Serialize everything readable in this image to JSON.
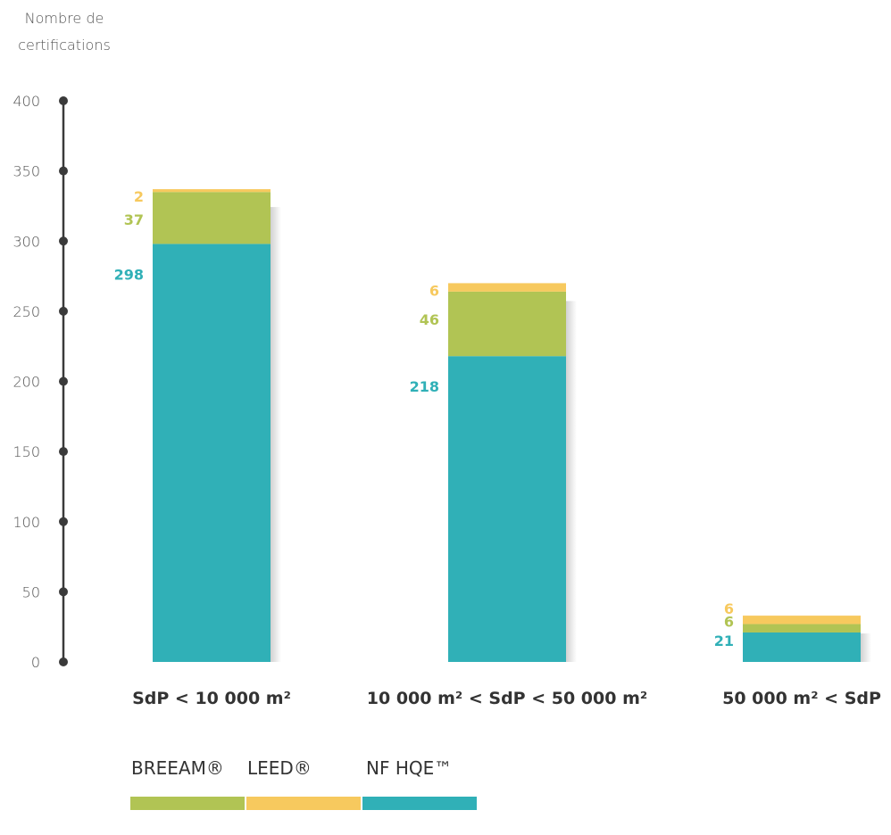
{
  "chart_data": {
    "type": "bar",
    "stacked": true,
    "ylabel_lines": [
      "Nombre de",
      "certifications"
    ],
    "ylim": [
      0,
      400
    ],
    "yticks": [
      0,
      50,
      100,
      150,
      200,
      250,
      300,
      350,
      400
    ],
    "categories": [
      "SdP < 10 000 m²",
      "10 000 m² < SdP < 50 000 m²",
      "50 000 m² < SdP"
    ],
    "series": [
      {
        "name": "NF HQE™",
        "color": "#30b0b7",
        "values": [
          298,
          218,
          21
        ]
      },
      {
        "name": "BREEAM®",
        "color": "#b1c454",
        "values": [
          37,
          46,
          6
        ]
      },
      {
        "name": "LEED®",
        "color": "#f7c95e",
        "values": [
          2,
          6,
          6
        ]
      }
    ],
    "legend_order": [
      "BREEAM®",
      "LEED®",
      "NF HQE™"
    ],
    "legend_position": "bottom",
    "grid": false
  }
}
